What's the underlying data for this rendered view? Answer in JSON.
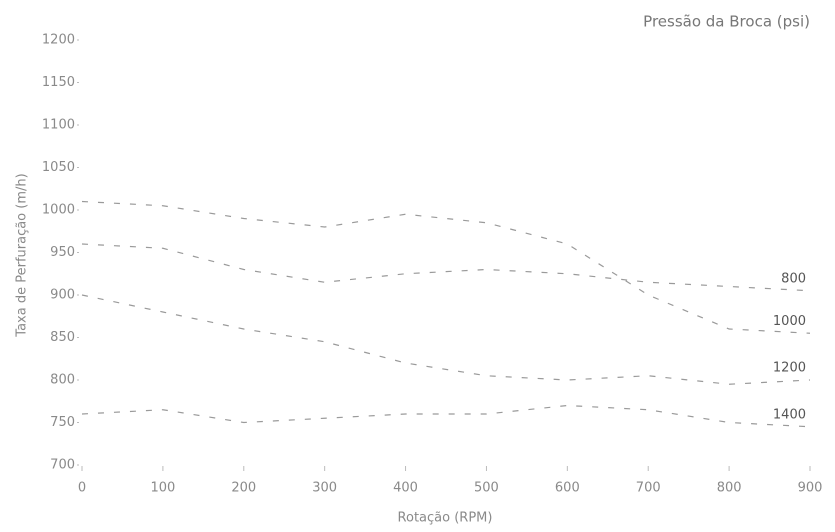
{
  "chart_data": {
    "type": "line",
    "title": "Pressão da Broca (psi)",
    "x_label": "Rotação (RPM)",
    "y_label": "Taxa de Perfuração (m/h)",
    "x": [
      0,
      100,
      200,
      300,
      400,
      500,
      600,
      700,
      800,
      900
    ],
    "xlim": [
      0,
      900
    ],
    "xticks": [
      0,
      100,
      200,
      300,
      400,
      500,
      600,
      700,
      800,
      900
    ],
    "ylim": [
      700,
      1200
    ],
    "yticks": [
      700,
      750,
      800,
      850,
      900,
      950,
      1000,
      1050,
      1100,
      1150,
      1200
    ],
    "grid": false,
    "series": [
      {
        "name": "800",
        "color": "#9a9a9a",
        "values": [
          960,
          955,
          930,
          915,
          925,
          930,
          925,
          915,
          910,
          905
        ]
      },
      {
        "name": "1000",
        "color": "#9a9a9a",
        "values": [
          1010,
          1005,
          990,
          980,
          995,
          985,
          960,
          900,
          860,
          855
        ]
      },
      {
        "name": "1200",
        "color": "#9a9a9a",
        "values": [
          900,
          880,
          860,
          845,
          820,
          805,
          800,
          805,
          795,
          800
        ]
      },
      {
        "name": "1400",
        "color": "#9a9a9a",
        "values": [
          760,
          765,
          750,
          755,
          760,
          760,
          770,
          765,
          750,
          745
        ]
      }
    ]
  }
}
